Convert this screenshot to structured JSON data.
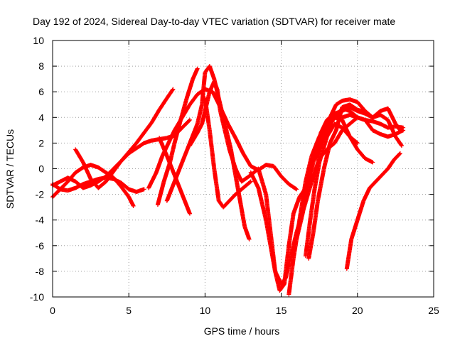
{
  "chart_data": {
    "type": "scatter",
    "title": "Day 192 of 2024, Sidereal Day-to-day VTEC variation (SDTVAR) for receiver mate",
    "xlabel": "GPS time / hours",
    "ylabel": "SDTVAR / TECUs",
    "xlim": [
      0,
      25
    ],
    "ylim": [
      -10,
      10
    ],
    "x_ticks": [
      "0",
      "5",
      "10",
      "15",
      "20",
      "25"
    ],
    "y_ticks": [
      "10",
      "8",
      "6",
      "4",
      "2",
      "0",
      "-2",
      "-4",
      "-6",
      "-8",
      "-10"
    ],
    "grid": true,
    "marker": "plus",
    "series": [
      {
        "color": "#ff0000",
        "points": [
          [
            0,
            -1.3
          ],
          [
            0.5,
            -1.0
          ],
          [
            1.0,
            -0.7
          ],
          [
            1.5,
            -1.0
          ],
          [
            2.0,
            -1.5
          ],
          [
            2.5,
            -1.3
          ],
          [
            3.0,
            -1.0
          ],
          [
            3.5,
            -0.6
          ],
          [
            4.0,
            0.0
          ],
          [
            4.5,
            0.6
          ],
          [
            5.0,
            1.3
          ],
          [
            5.5,
            2.0
          ],
          [
            6.0,
            2.8
          ],
          [
            6.5,
            3.6
          ],
          [
            7.0,
            4.6
          ],
          [
            7.5,
            5.5
          ],
          [
            7.9,
            6.2
          ]
        ]
      },
      {
        "color": "#ff0000",
        "points": [
          [
            0,
            -2.2
          ],
          [
            0.5,
            -1.6
          ],
          [
            1.0,
            -1.0
          ],
          [
            1.5,
            -0.3
          ],
          [
            2.0,
            0.1
          ],
          [
            2.5,
            0.3
          ],
          [
            3.0,
            0.1
          ],
          [
            3.5,
            -0.3
          ],
          [
            4.0,
            -0.7
          ],
          [
            4.5,
            -1.4
          ],
          [
            5.0,
            -2.2
          ],
          [
            5.3,
            -2.9
          ]
        ]
      },
      {
        "color": "#ff0000",
        "points": [
          [
            0,
            -1.2
          ],
          [
            0.5,
            -1.6
          ],
          [
            1.0,
            -1.7
          ],
          [
            1.5,
            -1.5
          ],
          [
            2.0,
            -1.2
          ],
          [
            2.5,
            -1.0
          ],
          [
            3.0,
            -0.8
          ],
          [
            3.5,
            -0.7
          ],
          [
            4.0,
            -0.8
          ],
          [
            4.5,
            -1.1
          ],
          [
            5.0,
            -1.6
          ],
          [
            5.5,
            -1.8
          ],
          [
            6.0,
            -1.6
          ]
        ]
      },
      {
        "color": "#ff0000",
        "points": [
          [
            1.5,
            1.5
          ],
          [
            2.0,
            0.5
          ],
          [
            2.5,
            -0.8
          ],
          [
            3.0,
            -1.5
          ],
          [
            3.5,
            -1.0
          ],
          [
            4.0,
            -0.2
          ],
          [
            4.5,
            0.6
          ],
          [
            5.0,
            1.2
          ],
          [
            5.5,
            1.6
          ],
          [
            6.0,
            2.0
          ],
          [
            6.5,
            2.2
          ],
          [
            7.0,
            2.3
          ],
          [
            7.5,
            2.4
          ],
          [
            8.0,
            2.6
          ],
          [
            8.5,
            3.2
          ],
          [
            9.0,
            3.8
          ]
        ]
      },
      {
        "color": "#ff0000",
        "points": [
          [
            6.3,
            -1.5
          ],
          [
            6.8,
            -0.3
          ],
          [
            7.2,
            1.0
          ],
          [
            7.6,
            2.0
          ],
          [
            8.0,
            3.0
          ],
          [
            8.5,
            4.0
          ],
          [
            9.0,
            5.0
          ],
          [
            9.5,
            5.8
          ],
          [
            10.0,
            6.2
          ],
          [
            10.5,
            6.0
          ],
          [
            11.0,
            4.8
          ],
          [
            11.5,
            3.5
          ],
          [
            12.0,
            2.4
          ],
          [
            12.5,
            1.2
          ],
          [
            13.0,
            0.2
          ],
          [
            13.5,
            -0.1
          ],
          [
            14.0,
            0.3
          ],
          [
            14.5,
            0.2
          ],
          [
            15.0,
            -0.6
          ],
          [
            15.5,
            -1.2
          ],
          [
            16.0,
            -1.6
          ]
        ]
      },
      {
        "color": "#ff0000",
        "points": [
          [
            6.9,
            -2.8
          ],
          [
            7.3,
            -1.0
          ],
          [
            7.7,
            0.5
          ],
          [
            8.0,
            2.0
          ],
          [
            8.4,
            3.8
          ],
          [
            8.8,
            5.5
          ],
          [
            9.2,
            7.0
          ],
          [
            9.5,
            7.8
          ]
        ]
      },
      {
        "color": "#ff0000",
        "points": [
          [
            7.0,
            2.4
          ],
          [
            7.5,
            1.0
          ],
          [
            8.0,
            -0.5
          ],
          [
            8.5,
            -2.0
          ],
          [
            9.0,
            -3.5
          ]
        ]
      },
      {
        "color": "#ff0000",
        "points": [
          [
            7.5,
            -2.5
          ],
          [
            8.0,
            -1.0
          ],
          [
            8.5,
            0.5
          ],
          [
            9.0,
            2.0
          ],
          [
            9.5,
            3.5
          ],
          [
            9.8,
            5.0
          ],
          [
            10.0,
            7.5
          ],
          [
            10.3,
            8.0
          ],
          [
            10.6,
            7.0
          ],
          [
            10.9,
            5.5
          ],
          [
            11.3,
            3.5
          ],
          [
            11.7,
            1.5
          ],
          [
            12.0,
            -0.5
          ],
          [
            12.3,
            -2.5
          ],
          [
            12.6,
            -4.5
          ],
          [
            12.9,
            -5.5
          ]
        ]
      },
      {
        "color": "#ff0000",
        "points": [
          [
            9.0,
            1.8
          ],
          [
            9.5,
            2.8
          ],
          [
            9.8,
            3.5
          ],
          [
            10.0,
            4.5
          ],
          [
            10.3,
            6.0
          ],
          [
            10.6,
            6.8
          ],
          [
            10.8,
            6.2
          ],
          [
            11.0,
            4.5
          ],
          [
            11.3,
            3.0
          ],
          [
            11.6,
            1.5
          ],
          [
            12.0,
            0.0
          ],
          [
            12.4,
            -1.0
          ],
          [
            13.0,
            -0.5
          ],
          [
            13.5,
            0.0
          ],
          [
            14.0,
            -2.0
          ],
          [
            14.3,
            -5.0
          ],
          [
            14.6,
            -8.0
          ],
          [
            15.0,
            -9.0
          ],
          [
            15.3,
            -8.5
          ],
          [
            15.6,
            -7.0
          ],
          [
            16.0,
            -5.0
          ],
          [
            16.5,
            -3.0
          ],
          [
            17.0,
            -1.0
          ],
          [
            17.5,
            0.8
          ],
          [
            18.0,
            1.5
          ],
          [
            18.5,
            2.0
          ],
          [
            19.0,
            3.0
          ],
          [
            19.5,
            3.5
          ],
          [
            20.0,
            4.0
          ],
          [
            20.5,
            3.8
          ],
          [
            21.0,
            3.0
          ],
          [
            21.5,
            2.7
          ],
          [
            22.0,
            2.5
          ],
          [
            22.5,
            2.7
          ],
          [
            23.0,
            3.0
          ]
        ]
      },
      {
        "color": "#ff0000",
        "points": [
          [
            10.0,
            5.5
          ],
          [
            10.3,
            3.0
          ],
          [
            10.6,
            0.0
          ],
          [
            10.9,
            -2.5
          ],
          [
            11.2,
            -3.0
          ],
          [
            11.6,
            -2.5
          ],
          [
            12.0,
            -2.0
          ],
          [
            12.5,
            -1.5
          ],
          [
            13.0,
            -1.0
          ]
        ]
      },
      {
        "color": "#ff0000",
        "points": [
          [
            13.0,
            -0.3
          ],
          [
            13.5,
            -1.5
          ],
          [
            14.0,
            -4.0
          ],
          [
            14.3,
            -6.0
          ],
          [
            14.6,
            -8.0
          ],
          [
            14.9,
            -9.5
          ],
          [
            15.2,
            -9.0
          ],
          [
            15.5,
            -6.0
          ],
          [
            15.8,
            -3.5
          ],
          [
            16.2,
            -2.2
          ],
          [
            16.6,
            -1.5
          ],
          [
            17.0,
            0.0
          ],
          [
            17.3,
            1.5
          ],
          [
            17.6,
            2.8
          ],
          [
            18.0,
            3.8
          ],
          [
            18.5,
            4.3
          ],
          [
            19.0,
            4.5
          ],
          [
            19.5,
            4.8
          ],
          [
            20.0,
            4.5
          ],
          [
            20.5,
            4.3
          ],
          [
            21.0,
            4.0
          ],
          [
            21.5,
            4.5
          ],
          [
            22.0,
            4.7
          ],
          [
            22.5,
            3.5
          ],
          [
            22.8,
            3.0
          ]
        ]
      },
      {
        "color": "#ff0000",
        "points": [
          [
            15.5,
            -9.8
          ],
          [
            15.8,
            -7.0
          ],
          [
            16.2,
            -4.0
          ],
          [
            16.6,
            -1.0
          ],
          [
            17.0,
            1.0
          ],
          [
            17.5,
            2.5
          ],
          [
            18.0,
            3.5
          ],
          [
            18.5,
            4.0
          ],
          [
            19.0,
            3.8
          ],
          [
            19.5,
            2.5
          ],
          [
            20.0,
            1.5
          ],
          [
            20.5,
            0.8
          ],
          [
            21.0,
            0.5
          ]
        ]
      },
      {
        "color": "#ff0000",
        "points": [
          [
            16.0,
            -5.5
          ],
          [
            16.4,
            -3.5
          ],
          [
            16.8,
            -1.0
          ],
          [
            17.1,
            1.0
          ],
          [
            17.5,
            2.0
          ],
          [
            18.0,
            3.0
          ],
          [
            18.5,
            4.0
          ],
          [
            19.0,
            4.7
          ],
          [
            19.5,
            4.5
          ],
          [
            20.0,
            4.0
          ]
        ]
      },
      {
        "color": "#ff0000",
        "points": [
          [
            16.6,
            -6.8
          ],
          [
            16.9,
            -4.0
          ],
          [
            17.2,
            -1.5
          ],
          [
            17.5,
            0.5
          ],
          [
            18.0,
            2.5
          ],
          [
            18.5,
            3.5
          ],
          [
            19.0,
            3.2
          ],
          [
            19.5,
            2.5
          ],
          [
            20.0,
            2.0
          ]
        ]
      },
      {
        "color": "#ff0000",
        "points": [
          [
            16.8,
            -7.0
          ],
          [
            17.1,
            -5.0
          ],
          [
            17.4,
            -2.5
          ],
          [
            17.8,
            0.0
          ],
          [
            18.2,
            2.0
          ],
          [
            18.6,
            3.0
          ],
          [
            19.0,
            4.8
          ],
          [
            19.5,
            5.0
          ],
          [
            20.0,
            4.6
          ],
          [
            20.5,
            4.4
          ]
        ]
      },
      {
        "color": "#ff0000",
        "points": [
          [
            17.3,
            0.8
          ],
          [
            17.8,
            2.5
          ],
          [
            18.2,
            4.0
          ],
          [
            18.6,
            5.0
          ],
          [
            19.0,
            5.3
          ],
          [
            19.5,
            5.4
          ],
          [
            20.0,
            5.2
          ],
          [
            20.5,
            4.5
          ],
          [
            21.0,
            4.0
          ],
          [
            21.5,
            4.2
          ],
          [
            22.0,
            3.8
          ],
          [
            22.5,
            2.5
          ],
          [
            22.9,
            1.8
          ]
        ]
      },
      {
        "color": "#ff0000",
        "points": [
          [
            19.3,
            -7.8
          ],
          [
            19.6,
            -5.5
          ],
          [
            20.0,
            -4.0
          ],
          [
            20.4,
            -2.5
          ],
          [
            20.8,
            -1.5
          ],
          [
            21.2,
            -1.0
          ],
          [
            21.6,
            -0.5
          ],
          [
            22.0,
            0.0
          ],
          [
            22.4,
            0.7
          ],
          [
            22.8,
            1.2
          ]
        ]
      },
      {
        "color": "#ff0000",
        "points": [
          [
            19.0,
            4.0
          ],
          [
            19.5,
            4.2
          ],
          [
            20.0,
            4.0
          ],
          [
            20.5,
            3.8
          ],
          [
            21.0,
            3.7
          ],
          [
            21.5,
            3.5
          ],
          [
            22.0,
            3.2
          ],
          [
            22.5,
            3.3
          ],
          [
            23.0,
            3.2
          ]
        ]
      }
    ]
  }
}
